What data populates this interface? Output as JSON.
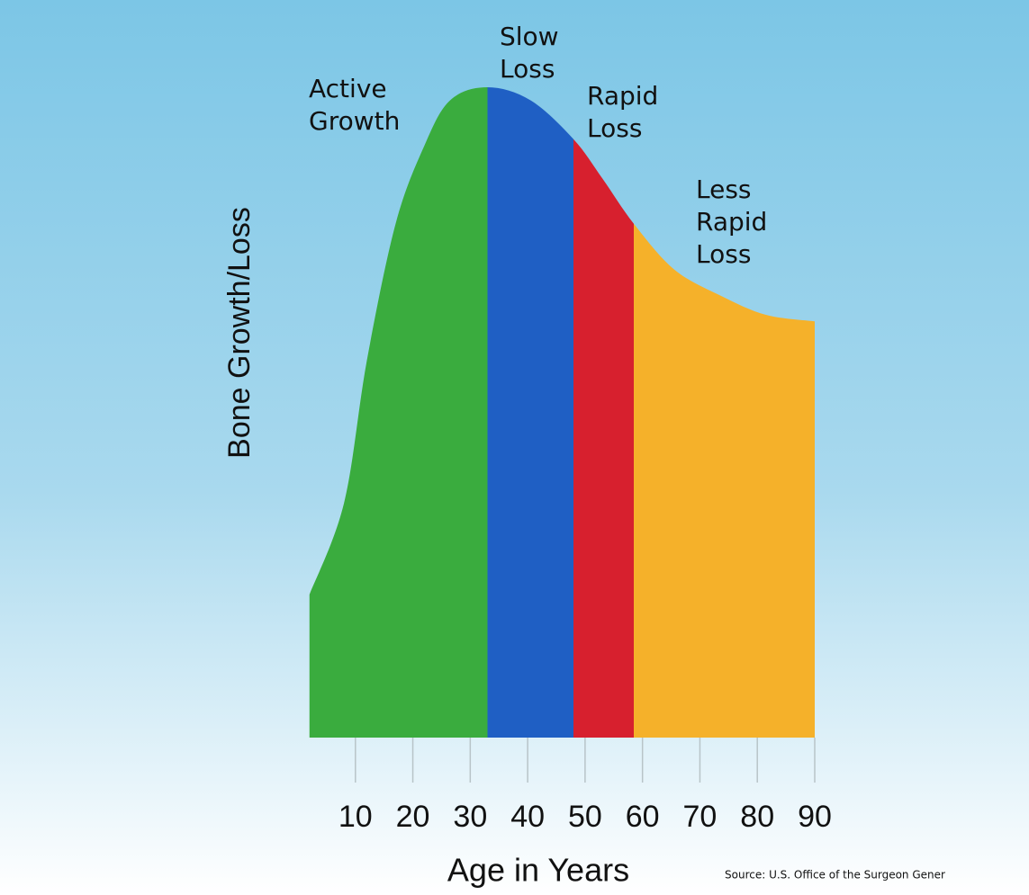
{
  "chart_data": {
    "type": "area",
    "y_label": "Bone Growth/Loss",
    "x_label": "Age in Years",
    "source": "Source: U.S. Office of the Surgeon Gener",
    "x": [
      2,
      8,
      12,
      17,
      22,
      26.5,
      33,
      40.5,
      48,
      53,
      58.5,
      65.5,
      73.5,
      81.5,
      90
    ],
    "values": [
      22,
      36,
      58,
      79,
      91,
      98,
      100,
      98,
      92,
      86,
      79,
      72,
      68,
      65,
      64
    ],
    "xlim": [
      0,
      90
    ],
    "ylim": [
      0,
      100
    ],
    "xticks": [
      10,
      20,
      30,
      40,
      50,
      60,
      70,
      80,
      90
    ],
    "phases": [
      {
        "lines": [
          "Active",
          "Growth"
        ],
        "from": 2,
        "to": 33,
        "color": "#3aac3e"
      },
      {
        "lines": [
          "Slow",
          "Loss"
        ],
        "from": 33,
        "to": 48,
        "color": "#1f5fc4"
      },
      {
        "lines": [
          "Rapid",
          "Loss"
        ],
        "from": 48,
        "to": 58.5,
        "color": "#d7202e"
      },
      {
        "lines": [
          "Less",
          "Rapid",
          "Loss"
        ],
        "from": 58.5,
        "to": 90,
        "color": "#f5b12a"
      }
    ]
  }
}
